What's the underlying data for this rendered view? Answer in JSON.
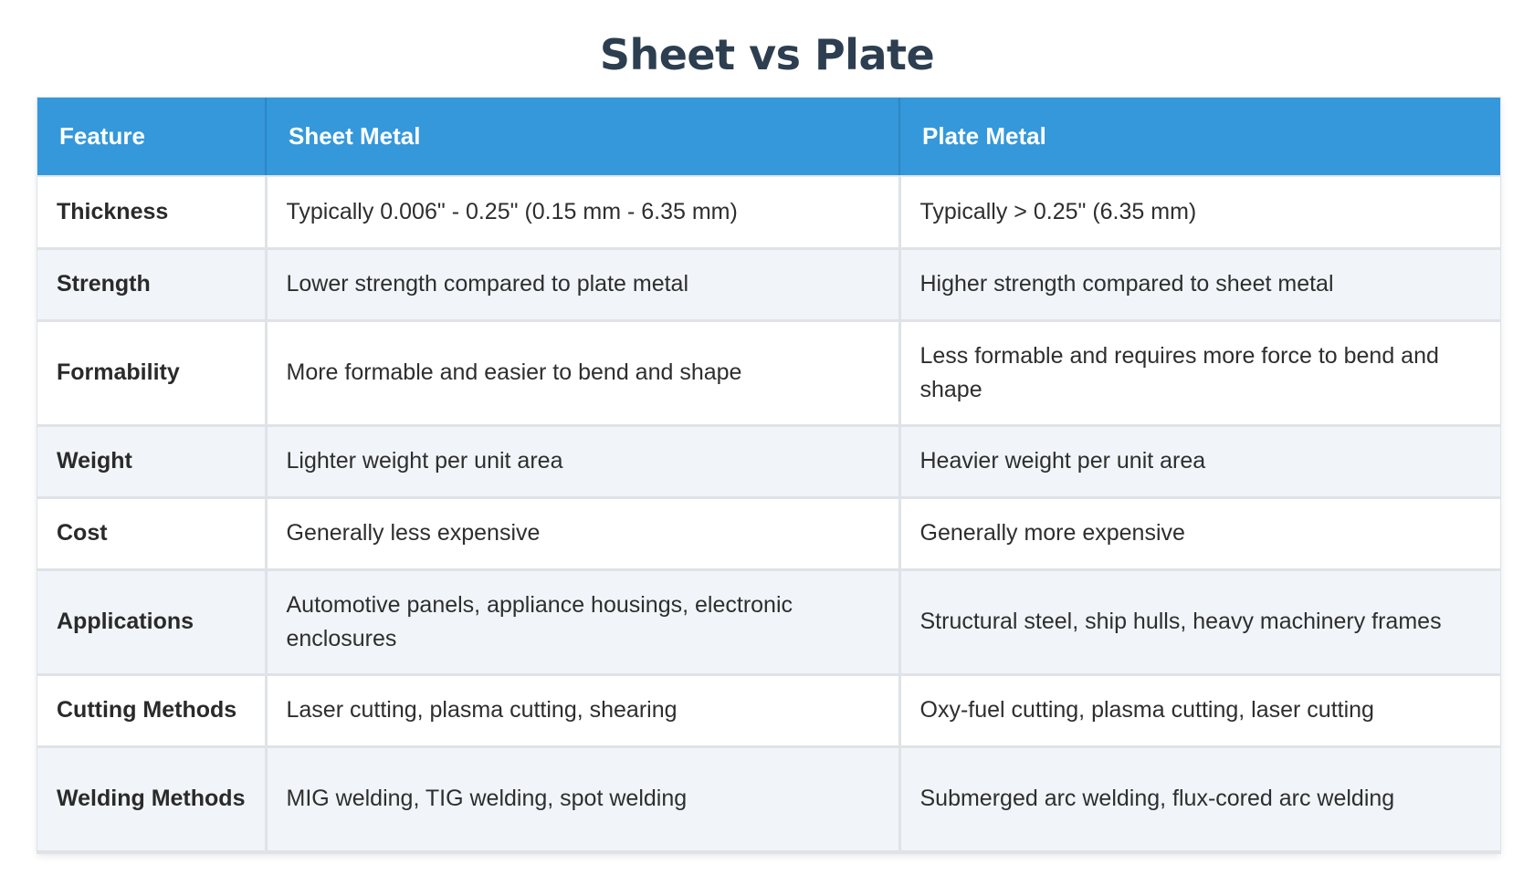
{
  "title": "Sheet vs Plate",
  "table": {
    "headers": [
      "Feature",
      "Sheet Metal",
      "Plate Metal"
    ],
    "rows": [
      {
        "feature": "Thickness",
        "sheet": "Typically 0.006\" - 0.25\" (0.15 mm - 6.35 mm)",
        "plate": "Typically > 0.25\" (6.35 mm)"
      },
      {
        "feature": "Strength",
        "sheet": "Lower strength compared to plate metal",
        "plate": "Higher strength compared to sheet metal"
      },
      {
        "feature": "Formability",
        "sheet": "More formable and easier to bend and shape",
        "plate": "Less formable and requires more force to bend and shape"
      },
      {
        "feature": "Weight",
        "sheet": "Lighter weight per unit area",
        "plate": "Heavier weight per unit area"
      },
      {
        "feature": "Cost",
        "sheet": "Generally less expensive",
        "plate": "Generally more expensive"
      },
      {
        "feature": "Applications",
        "sheet": "Automotive panels, appliance housings, electronic enclosures",
        "plate": "Structural steel, ship hulls, heavy machinery frames"
      },
      {
        "feature": "Cutting Methods",
        "sheet": "Laser cutting, plasma cutting, shearing",
        "plate": "Oxy-fuel cutting, plasma cutting, laser cutting"
      },
      {
        "feature": "Welding Methods",
        "sheet": "MIG welding, TIG welding, spot welding",
        "plate": "Submerged arc welding, flux-cored arc welding"
      }
    ]
  },
  "colors": {
    "title": "#2c3e50",
    "header_bg": "#3498db",
    "header_text": "#ffffff",
    "row_alt_bg": "#f1f5f9",
    "row_bg": "#ffffff"
  }
}
